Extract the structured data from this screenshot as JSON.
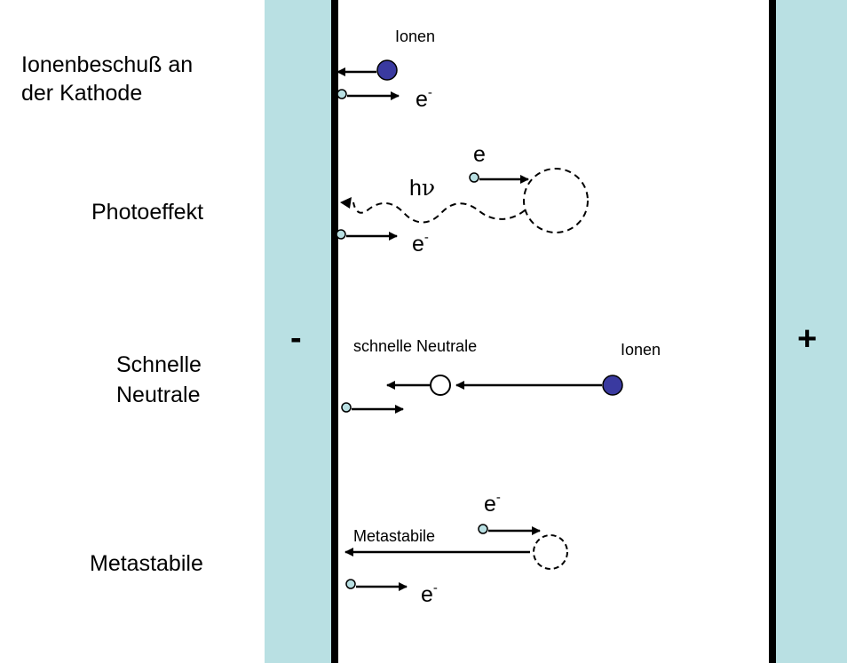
{
  "colors": {
    "electrode": "#b9e0e3",
    "ion": "#3a3aa0",
    "electron": "#b9e0e3",
    "line": "#000000"
  },
  "electrodes": {
    "cathode_sign": "-",
    "anode_sign": "+"
  },
  "sections": [
    {
      "id": "ion",
      "label_lines": [
        "Ionenbeschuß an",
        "der Kathode"
      ]
    },
    {
      "id": "photo",
      "label_lines": [
        "Photoeffekt"
      ]
    },
    {
      "id": "fast",
      "label_lines": [
        "Schnelle",
        "Neutrale"
      ]
    },
    {
      "id": "meta",
      "label_lines": [
        "Metastabile"
      ]
    }
  ],
  "annotations": {
    "ionen_top": "Ionen",
    "electron": "e",
    "electron_sup": "-",
    "h": "h",
    "nu": "ν",
    "schnelle_neutrale": "schnelle Neutrale",
    "ionen_right": "Ionen",
    "metastabile": "Metastabile"
  }
}
